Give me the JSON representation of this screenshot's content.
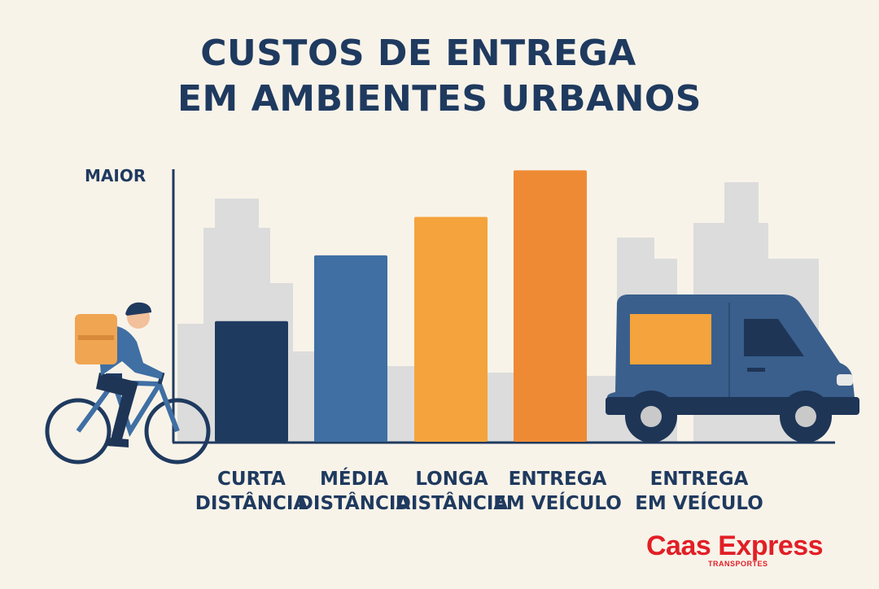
{
  "chart_data": {
    "type": "bar",
    "title": "CUSTOS DE ENTREGA EM AMBIENTES URBANOS",
    "title_lines": [
      "CUSTOS DE ENTREGA",
      "EM AMBIENTES URBANOS"
    ],
    "ylabel": "MAIOR",
    "ylim": [
      0,
      100
    ],
    "grid": false,
    "categories": [
      [
        "CURTA",
        "DISTÂNCIA"
      ],
      [
        "MÉDIA",
        "DISTÂNCIA"
      ],
      [
        "LONGA",
        "DISTÂNCIA"
      ],
      [
        "ENTREGA",
        "EM VEÍCULO"
      ],
      [
        "ENTREGA",
        "EM VEÍCULO"
      ]
    ],
    "values": [
      44,
      68,
      82,
      99,
      null
    ],
    "colors": [
      "#1f3a5f",
      "#3f6fa3",
      "#f5a33c",
      "#ef8a34"
    ]
  },
  "brand": {
    "name": "Caas Express",
    "tagline": "TRANSPORTES"
  },
  "palette": {
    "background": "#f8f3e9",
    "text": "#1f3a5f",
    "buildings": "#dcdcdc",
    "van": "#3a5f8c",
    "van_window": "#f5a33c",
    "brand": "#e21f26"
  }
}
